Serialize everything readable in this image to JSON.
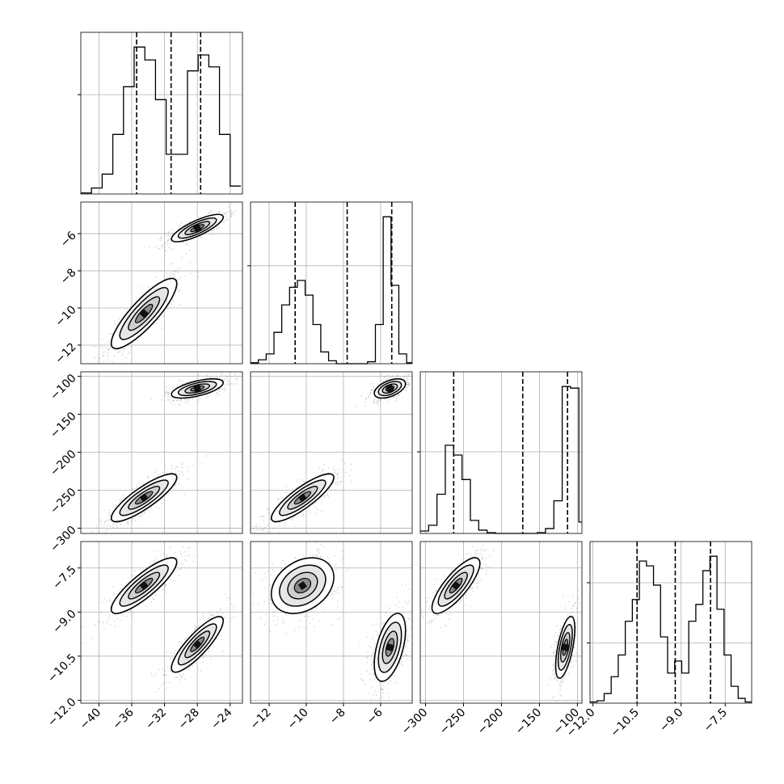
{
  "chart_data": {
    "type": "corner",
    "title": "",
    "parameters": [
      {
        "ticks": [
          -40,
          -36,
          -32,
          -28,
          -24
        ],
        "tick_labels": [
          "−40",
          "−36",
          "−32",
          "−28",
          "−24"
        ],
        "range": [
          -42.2,
          -22.5
        ]
      },
      {
        "ticks": [
          -12,
          -10,
          -8,
          -6
        ],
        "tick_labels": [
          "−12",
          "−10",
          "−8",
          "−6"
        ],
        "range": [
          -13.0,
          -4.3
        ]
      },
      {
        "ticks": [
          -300,
          -250,
          -200,
          -150,
          -100
        ],
        "tick_labels": [
          "−300",
          "−250",
          "−200",
          "−150",
          "−100"
        ],
        "range": [
          -307,
          -94
        ]
      },
      {
        "ticks": [
          -12.0,
          -10.5,
          -9.0,
          -7.5
        ],
        "tick_labels": [
          "−12.0",
          "−10.5",
          "−9.0",
          "−7.5"
        ],
        "range": [
          -12.1,
          -6.6
        ]
      }
    ],
    "grid": true,
    "histograms": [
      {
        "parameter_index": 0,
        "bin_edges": [
          -42.2,
          -40.9,
          -39.6,
          -38.3,
          -37.0,
          -35.7,
          -34.4,
          -33.1,
          -31.8,
          -30.5,
          -29.2,
          -27.9,
          -26.6,
          -25.3,
          -24.0,
          -22.7
        ],
        "counts": [
          1,
          6,
          20,
          60,
          108,
          148,
          135,
          95,
          40,
          40,
          124,
          140,
          128,
          60,
          8
        ],
        "quantiles": [
          -35.4,
          -31.2,
          -27.6
        ]
      },
      {
        "parameter_index": 1,
        "bin_edges": [
          -13.0,
          -12.58,
          -12.16,
          -11.74,
          -11.32,
          -10.9,
          -10.48,
          -10.06,
          -9.64,
          -9.22,
          -8.8,
          -8.38,
          -7.96,
          -7.54,
          -7.12,
          -6.7,
          -6.28,
          -5.86,
          -5.44,
          -5.02,
          -4.6,
          -4.3
        ],
        "counts": [
          1,
          4,
          10,
          32,
          60,
          78,
          85,
          70,
          40,
          12,
          3,
          0,
          0,
          0,
          0,
          2,
          40,
          150,
          80,
          10,
          1
        ],
        "quantiles": [
          -10.6,
          -7.8,
          -5.4
        ]
      },
      {
        "parameter_index": 2,
        "bin_edges": [
          -307,
          -296,
          -285,
          -274,
          -263,
          -252,
          -241,
          -230,
          -219,
          -208,
          -197,
          -186,
          -175,
          -164,
          -153,
          -142,
          -131,
          -120,
          -109,
          -98,
          -94
        ],
        "counts": [
          3,
          10,
          48,
          108,
          96,
          66,
          16,
          4,
          1,
          0,
          0,
          0,
          0,
          0,
          1,
          6,
          40,
          180,
          178,
          14
        ],
        "quantiles": [
          -263,
          -172,
          -113
        ]
      },
      {
        "parameter_index": 3,
        "bin_edges": [
          -12.1,
          -11.86,
          -11.62,
          -11.38,
          -11.14,
          -10.9,
          -10.66,
          -10.42,
          -10.18,
          -9.94,
          -9.7,
          -9.46,
          -9.22,
          -8.98,
          -8.74,
          -8.5,
          -8.26,
          -8.02,
          -7.78,
          -7.54,
          -7.3,
          -7.06,
          -6.82,
          -6.6
        ],
        "counts": [
          1,
          2,
          8,
          22,
          40,
          68,
          86,
          118,
          114,
          98,
          55,
          25,
          35,
          25,
          68,
          82,
          110,
          122,
          78,
          40,
          14,
          4,
          1
        ],
        "quantiles": [
          -10.5,
          -9.2,
          -8.0
        ]
      }
    ],
    "samples_2d": [
      {
        "x_param": 0,
        "y_param": 1,
        "modes": [
          {
            "cx": -34.5,
            "cy": -10.3,
            "sx": 1.9,
            "sy": 0.9,
            "rho": 0.85
          },
          {
            "cx": -28.0,
            "cy": -5.7,
            "sx": 1.5,
            "sy": 0.35,
            "rho": 0.8
          }
        ]
      },
      {
        "x_param": 0,
        "y_param": 2,
        "modes": [
          {
            "cx": -34.5,
            "cy": -260,
            "sx": 1.9,
            "sy": 15,
            "rho": 0.85
          },
          {
            "cx": -28.0,
            "cy": -116,
            "sx": 1.5,
            "sy": 6,
            "rho": 0.6
          }
        ]
      },
      {
        "x_param": 0,
        "y_param": 3,
        "modes": [
          {
            "cx": -34.5,
            "cy": -8.1,
            "sx": 1.9,
            "sy": 0.45,
            "rho": 0.85
          },
          {
            "cx": -28.0,
            "cy": -10.1,
            "sx": 1.5,
            "sy": 0.45,
            "rho": 0.85
          }
        ]
      },
      {
        "x_param": 1,
        "y_param": 2,
        "modes": [
          {
            "cx": -10.2,
            "cy": -260,
            "sx": 0.8,
            "sy": 15,
            "rho": 0.85
          },
          {
            "cx": -5.5,
            "cy": -116,
            "sx": 0.4,
            "sy": 6,
            "rho": 0.5
          }
        ]
      },
      {
        "x_param": 1,
        "y_param": 3,
        "modes": [
          {
            "cx": -10.2,
            "cy": -8.1,
            "sx": 0.8,
            "sy": 0.45,
            "rho": 0.3
          },
          {
            "cx": -5.5,
            "cy": -10.2,
            "sx": 0.4,
            "sy": 0.55,
            "rho": 0.5
          }
        ]
      },
      {
        "x_param": 2,
        "y_param": 3,
        "modes": [
          {
            "cx": -260,
            "cy": -8.1,
            "sx": 15,
            "sy": 0.45,
            "rho": 0.8
          },
          {
            "cx": -116,
            "cy": -10.2,
            "sx": 6,
            "sy": 0.5,
            "rho": 0.6
          }
        ]
      }
    ],
    "colors": {
      "line": "#000000",
      "grid": "#b0b0b0",
      "points": "#9a9a9a",
      "fill_light": "#e6e6e6",
      "fill_dark": "#8a8a8a",
      "peak": "#111111"
    }
  }
}
